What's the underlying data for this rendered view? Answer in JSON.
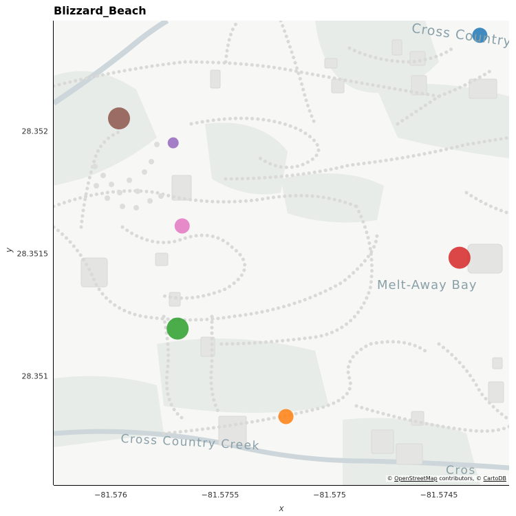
{
  "title": "Blizzard_Beach",
  "axes": {
    "xlabel": "x",
    "ylabel": "y",
    "xticks": [
      "−81.576",
      "−81.5755",
      "−81.575",
      "−81.5745"
    ],
    "yticks": [
      "28.352",
      "28.3515",
      "28.351"
    ]
  },
  "map_labels": {
    "cross_country_top": "Cross Country",
    "melt_away_bay": "Melt-Away Bay",
    "cross_country_creek": "Cross Country Creek",
    "cross_bottom_right": "Cros"
  },
  "attribution": {
    "prefix": "© ",
    "osm": "OpenStreetMap",
    "middle": " contributors, © ",
    "carto": "CartoDB"
  },
  "chart_data": {
    "type": "scatter",
    "title": "Blizzard_Beach",
    "xlabel": "x",
    "ylabel": "y",
    "xlim": [
      -81.57635,
      -81.57433
    ],
    "ylim": [
      28.35044,
      28.35234
    ],
    "xticks": [
      -81.576,
      -81.5755,
      -81.575,
      -81.5745
    ],
    "yticks": [
      28.352,
      28.3515,
      28.351
    ],
    "grid": false,
    "points": [
      {
        "x": -81.57446,
        "y": 28.35228,
        "color": "#1f77b4",
        "size": "medium"
      },
      {
        "x": -81.57606,
        "y": 28.35194,
        "color": "#8c564b",
        "size": "large"
      },
      {
        "x": -81.57582,
        "y": 28.35184,
        "color": "#9467bd",
        "size": "small"
      },
      {
        "x": -81.57578,
        "y": 28.3515,
        "color": "#e377c2",
        "size": "medium"
      },
      {
        "x": -81.57455,
        "y": 28.35137,
        "color": "#d62728",
        "size": "large"
      },
      {
        "x": -81.5758,
        "y": 28.35108,
        "color": "#2ca02c",
        "size": "large"
      },
      {
        "x": -81.57532,
        "y": 28.35072,
        "color": "#ff7f0e",
        "size": "medium"
      }
    ]
  }
}
